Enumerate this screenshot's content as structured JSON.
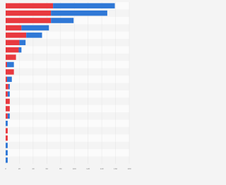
{
  "chart_data": {
    "type": "stacked-bar-horizontal",
    "categories": [
      null,
      null,
      null,
      null,
      null,
      null,
      null,
      null,
      null,
      null,
      null,
      null,
      null,
      null,
      null,
      null,
      null,
      null,
      null,
      null,
      null,
      null
    ],
    "series": [
      {
        "color": "#e8393f",
        "values": [
          69,
          66,
          66,
          23,
          30,
          20,
          19,
          15,
          2,
          12,
          2,
          4,
          3,
          6,
          6,
          3,
          0,
          3,
          3,
          0,
          0,
          0
        ]
      },
      {
        "color": "#2f78d6",
        "values": [
          90,
          82,
          33,
          40,
          23,
          9,
          4,
          0,
          10,
          0,
          7,
          2,
          3,
          0,
          0,
          3,
          3,
          0,
          0,
          3,
          3,
          3
        ]
      }
    ],
    "xlim": [
      0,
      180
    ],
    "xticks": [
      0,
      20,
      40,
      60,
      80,
      100,
      120,
      140,
      160,
      180
    ],
    "grid": true
  }
}
